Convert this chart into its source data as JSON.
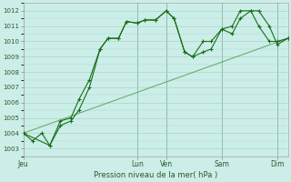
{
  "xlabel": "Pression niveau de la mer( hPa )",
  "bg_color": "#cceee8",
  "grid_color": "#aad4cc",
  "line_color": "#1a6e1a",
  "trend_color": "#4a9a4a",
  "ylim": [
    1002.5,
    1012.5
  ],
  "yticks": [
    1003,
    1004,
    1005,
    1006,
    1007,
    1008,
    1009,
    1010,
    1011,
    1012
  ],
  "day_labels": [
    "Jeu",
    "Lun",
    "Ven",
    "Sam",
    "Dim"
  ],
  "day_positions": [
    0,
    0.43,
    0.54,
    0.75,
    0.96
  ],
  "xlim": [
    0,
    1.0
  ],
  "series1_x": [
    0.0,
    0.035,
    0.07,
    0.1,
    0.14,
    0.18,
    0.21,
    0.25,
    0.29,
    0.32,
    0.36,
    0.39,
    0.43,
    0.46,
    0.5,
    0.54,
    0.57,
    0.61,
    0.64,
    0.68,
    0.71,
    0.75,
    0.79,
    0.82,
    0.86,
    0.89,
    0.93,
    0.96,
    1.0
  ],
  "series1_y": [
    1004.0,
    1003.5,
    1004.0,
    1003.2,
    1004.8,
    1005.0,
    1006.2,
    1007.5,
    1009.5,
    1010.2,
    1010.2,
    1011.3,
    1011.2,
    1011.4,
    1011.4,
    1012.0,
    1011.5,
    1009.3,
    1009.0,
    1010.0,
    1010.0,
    1010.8,
    1011.0,
    1012.0,
    1012.0,
    1011.0,
    1010.0,
    1010.0,
    1010.2
  ],
  "series2_x": [
    0.0,
    0.1,
    0.14,
    0.18,
    0.21,
    0.25,
    0.29,
    0.32,
    0.36,
    0.39,
    0.43,
    0.46,
    0.5,
    0.54,
    0.57,
    0.61,
    0.64,
    0.68,
    0.71,
    0.75,
    0.79,
    0.82,
    0.86,
    0.89,
    0.93,
    0.96,
    1.0
  ],
  "series2_y": [
    1004.0,
    1003.2,
    1004.5,
    1004.8,
    1005.5,
    1007.0,
    1009.5,
    1010.2,
    1010.2,
    1011.3,
    1011.2,
    1011.4,
    1011.4,
    1012.0,
    1011.5,
    1009.3,
    1009.0,
    1009.3,
    1009.5,
    1010.8,
    1010.5,
    1011.5,
    1012.0,
    1012.0,
    1011.0,
    1009.8,
    1010.2
  ],
  "trend_x": [
    0.0,
    1.0
  ],
  "trend_y": [
    1004.0,
    1010.2
  ],
  "ytick_fontsize": 5.0,
  "xtick_fontsize": 5.5,
  "xlabel_fontsize": 6.0
}
